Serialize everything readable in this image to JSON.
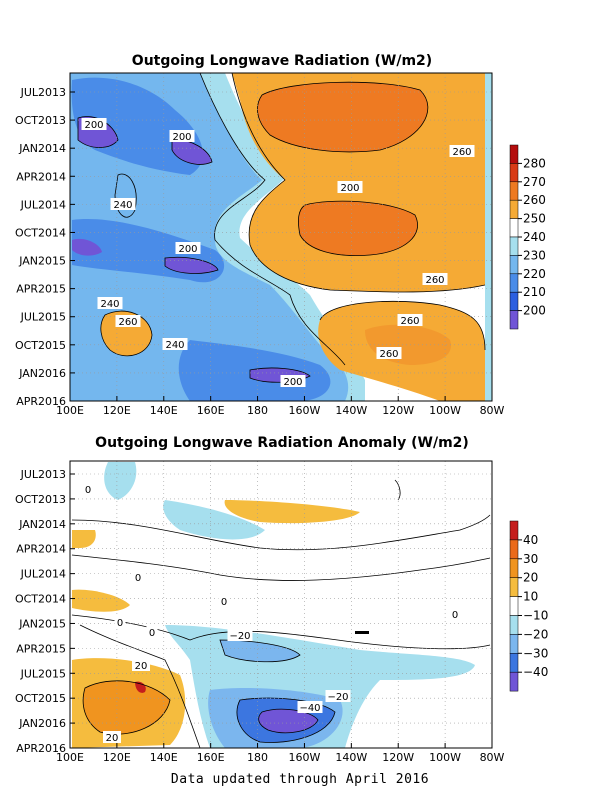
{
  "footer": "Data updated through April 2016",
  "chart_data": [
    {
      "type": "heatmap",
      "title": "Outgoing Longwave Radiation (W/m2)",
      "x_tick_labels": [
        "100E",
        "120E",
        "140E",
        "160E",
        "180",
        "160W",
        "140W",
        "120W",
        "100W",
        "80W"
      ],
      "y_tick_labels": [
        "JUL2013",
        "OCT2013",
        "JAN2014",
        "APR2014",
        "JUL2014",
        "OCT2014",
        "JAN2015",
        "APR2015",
        "JUL2015",
        "OCT2015",
        "JAN2016",
        "APR2016"
      ],
      "colorbar": {
        "labels": [
          "280",
          "270",
          "260",
          "250",
          "240",
          "230",
          "220",
          "210",
          "200"
        ],
        "colors": [
          "#b40d0d",
          "#d83b16",
          "#ee7a22",
          "#f5aa35",
          "#ffffff",
          "#a6dfee",
          "#74b7ee",
          "#4a8ce8",
          "#2c5fe0",
          "#7055d6"
        ]
      },
      "contour_labels": [
        "200",
        "200",
        "200",
        "240",
        "200",
        "240",
        "260",
        "240",
        "200",
        "260",
        "260",
        "260",
        "260"
      ],
      "grid": true
    },
    {
      "type": "heatmap",
      "title": "Outgoing Longwave Radiation Anomaly (W/m2)",
      "x_tick_labels": [
        "100E",
        "120E",
        "140E",
        "160E",
        "180",
        "160W",
        "140W",
        "120W",
        "100W",
        "80W"
      ],
      "y_tick_labels": [
        "JUL2013",
        "OCT2013",
        "JAN2014",
        "APR2014",
        "JUL2014",
        "OCT2014",
        "JAN2015",
        "APR2015",
        "JUL2015",
        "OCT2015",
        "JAN2016",
        "APR2016"
      ],
      "colorbar": {
        "labels": [
          "40",
          "30",
          "20",
          "10",
          "−10",
          "−20",
          "−30",
          "−40"
        ],
        "colors": [
          "#c51d1d",
          "#ea6a1a",
          "#f0941f",
          "#f5bc3e",
          "#ffffff",
          "#a6dfee",
          "#7bb6ee",
          "#3c76e0",
          "#7055d6"
        ]
      },
      "contour_labels": [
        "0",
        "0",
        "0",
        "0",
        "0",
        "0",
        "−20",
        "20",
        "−20",
        "−40",
        "20"
      ],
      "grid": true
    }
  ]
}
